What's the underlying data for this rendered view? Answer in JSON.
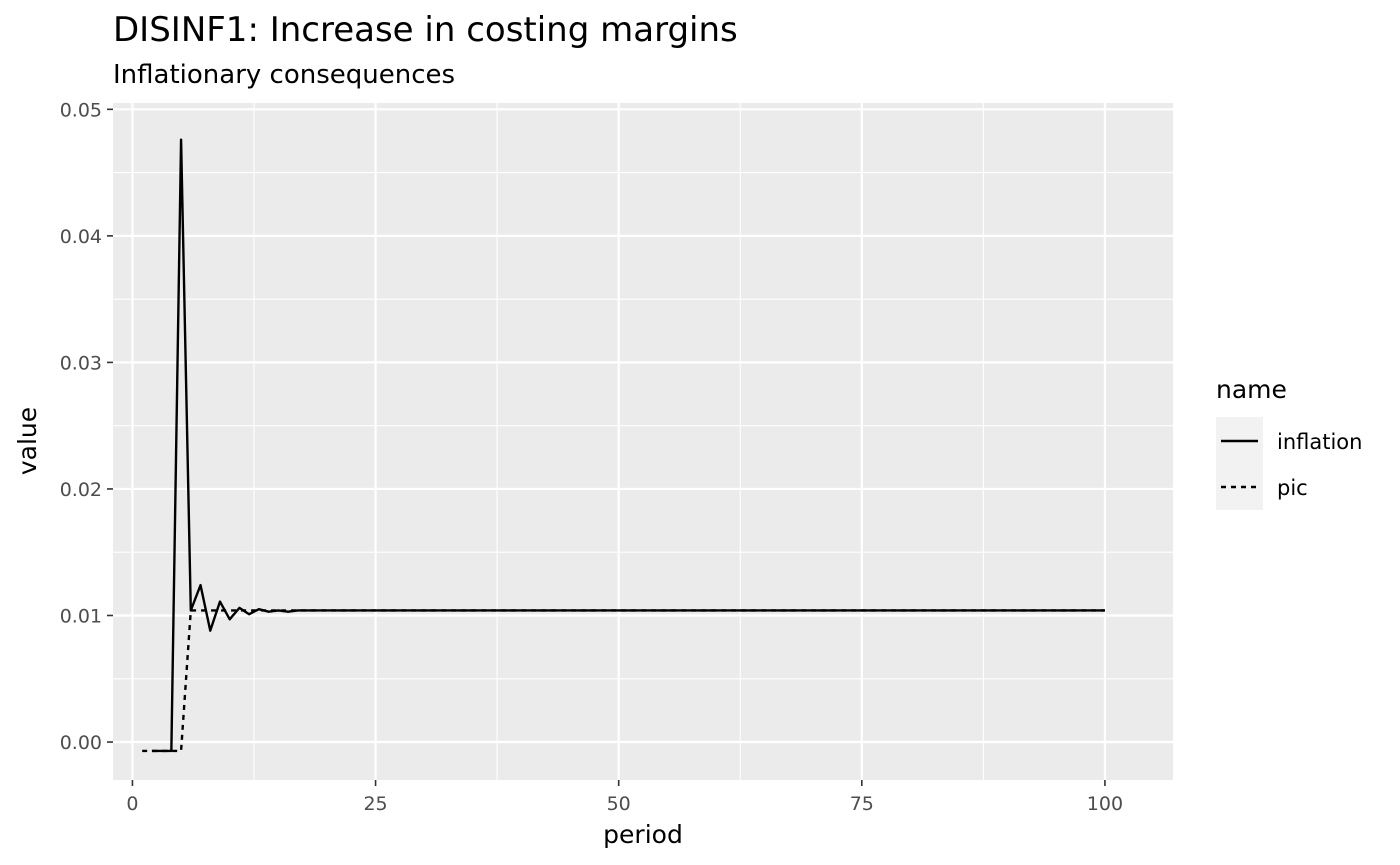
{
  "chart_data": {
    "type": "line",
    "title": "DISINF1: Increase in costing margins",
    "subtitle": "Inflationary consequences",
    "xlabel": "period",
    "ylabel": "value",
    "xlim": [
      -2,
      107
    ],
    "ylim": [
      -0.003,
      0.0505
    ],
    "x_ticks": [
      0,
      25,
      50,
      75,
      100
    ],
    "x_tick_labels": [
      "0",
      "25",
      "50",
      "75",
      "100"
    ],
    "y_ticks": [
      0,
      0.01,
      0.02,
      0.03,
      0.04,
      0.05
    ],
    "y_tick_labels": [
      "0.00",
      "0.01",
      "0.02",
      "0.03",
      "0.04",
      "0.05"
    ],
    "grid": true,
    "legend": {
      "title": "name",
      "placement": "right",
      "entries": [
        "inflation",
        "pic"
      ]
    },
    "series": [
      {
        "name": "inflation",
        "line_style": "solid",
        "color": "#000000",
        "x": [
          2,
          3,
          4,
          5,
          6,
          7,
          8,
          9,
          10,
          11,
          12,
          13,
          14,
          15,
          16,
          17,
          18,
          20,
          25,
          30,
          40,
          50,
          60,
          70,
          80,
          90,
          100
        ],
        "values": [
          -0.0007,
          -0.0007,
          -0.0007,
          0.0476,
          0.0104,
          0.0124,
          0.0088,
          0.0111,
          0.0097,
          0.0106,
          0.0101,
          0.0105,
          0.0103,
          0.0104,
          0.0103,
          0.0104,
          0.0104,
          0.0104,
          0.0104,
          0.0104,
          0.0104,
          0.0104,
          0.0104,
          0.0104,
          0.0104,
          0.0104,
          0.0104
        ]
      },
      {
        "name": "pic",
        "line_style": "dashed",
        "color": "#000000",
        "x": [
          1,
          2,
          3,
          4,
          5,
          6,
          7,
          8,
          9,
          10,
          12,
          15,
          20,
          25,
          30,
          40,
          50,
          60,
          70,
          80,
          90,
          100
        ],
        "values": [
          -0.0007,
          -0.0007,
          -0.0007,
          -0.0007,
          -0.0007,
          0.0104,
          0.0104,
          0.0104,
          0.0104,
          0.0104,
          0.0104,
          0.0104,
          0.0104,
          0.0104,
          0.0104,
          0.0104,
          0.0104,
          0.0104,
          0.0104,
          0.0104,
          0.0104,
          0.0104
        ]
      }
    ]
  }
}
